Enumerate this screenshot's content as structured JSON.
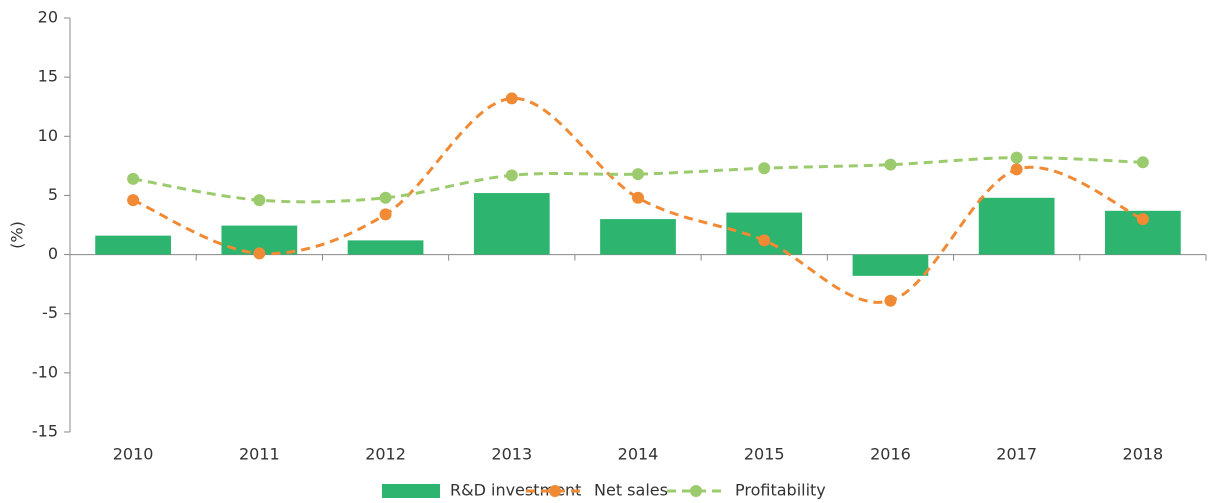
{
  "chart_data": {
    "type": "combo",
    "y_label": "(%)",
    "categories": [
      "2010",
      "2011",
      "2012",
      "2013",
      "2014",
      "2015",
      "2016",
      "2017",
      "2018"
    ],
    "series": [
      {
        "name": "R&D investment",
        "type": "bar",
        "color": "#2db46e",
        "values": [
          1.6,
          2.45,
          1.2,
          5.2,
          3.0,
          3.55,
          -1.8,
          4.8,
          3.7
        ]
      },
      {
        "name": "Net sales",
        "type": "line",
        "color": "#f08a35",
        "values": [
          4.6,
          0.1,
          3.4,
          13.2,
          4.8,
          1.2,
          -3.9,
          7.2,
          3.0
        ]
      },
      {
        "name": "Profitability",
        "type": "line",
        "color": "#9ccb6e",
        "values": [
          6.4,
          4.6,
          4.8,
          6.7,
          6.8,
          7.3,
          7.6,
          8.2,
          7.8
        ]
      }
    ],
    "ylim": [
      -15,
      20
    ],
    "yticks": [
      -15,
      -10,
      -5,
      0,
      5,
      10,
      15,
      20
    ],
    "legend": "bottom"
  }
}
